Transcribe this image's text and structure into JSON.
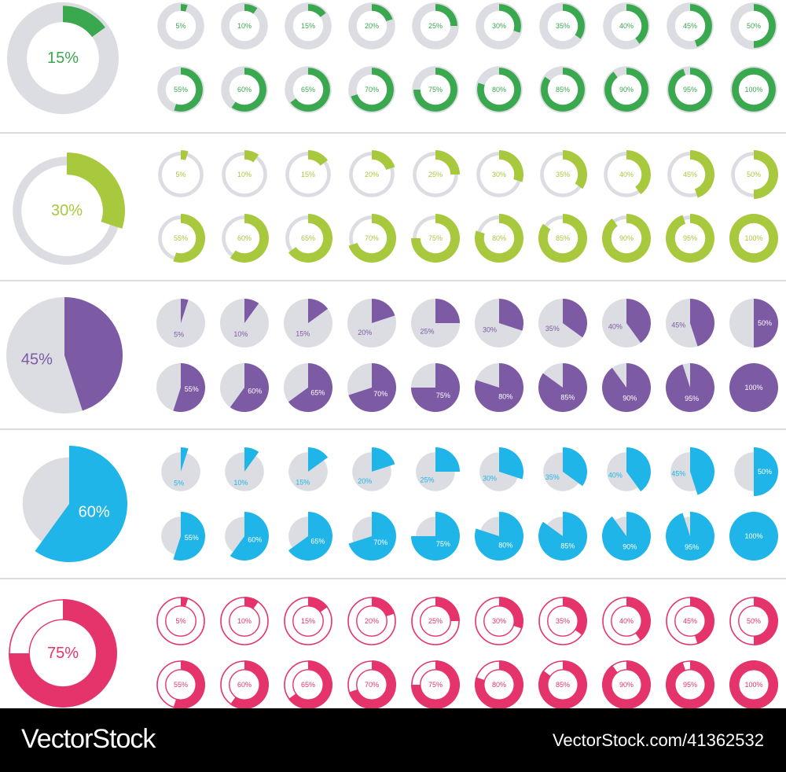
{
  "sets": [
    {
      "name": "green-donut",
      "style": "donut",
      "color": "#3aa84f",
      "track": "#dcdde2",
      "hero_percent": 15,
      "hero_label": "15%"
    },
    {
      "name": "lime-ring",
      "style": "ring",
      "color": "#a8c83e",
      "track": "#dcdde2",
      "hero_percent": 30,
      "hero_label": "30%"
    },
    {
      "name": "purple-pie",
      "style": "pie",
      "color": "#7c5aa4",
      "track": "#dcdde2",
      "hero_percent": 45,
      "hero_label": "45%"
    },
    {
      "name": "blue-pie",
      "style": "pie-exploded",
      "color": "#1fb5e8",
      "track": "#dcdde2",
      "hero_percent": 60,
      "hero_label": "60%"
    },
    {
      "name": "pink-outline",
      "style": "outline",
      "color": "#e5336c",
      "track": "#ffffff",
      "hero_percent": 75,
      "hero_label": "75%"
    }
  ],
  "steps": [
    {
      "percent": 5,
      "label": "5%"
    },
    {
      "percent": 10,
      "label": "10%"
    },
    {
      "percent": 15,
      "label": "15%"
    },
    {
      "percent": 20,
      "label": "20%"
    },
    {
      "percent": 25,
      "label": "25%"
    },
    {
      "percent": 30,
      "label": "30%"
    },
    {
      "percent": 35,
      "label": "35%"
    },
    {
      "percent": 40,
      "label": "40%"
    },
    {
      "percent": 45,
      "label": "45%"
    },
    {
      "percent": 50,
      "label": "50%"
    },
    {
      "percent": 55,
      "label": "55%"
    },
    {
      "percent": 60,
      "label": "60%"
    },
    {
      "percent": 65,
      "label": "65%"
    },
    {
      "percent": 70,
      "label": "70%"
    },
    {
      "percent": 75,
      "label": "75%"
    },
    {
      "percent": 80,
      "label": "80%"
    },
    {
      "percent": 85,
      "label": "85%"
    },
    {
      "percent": 90,
      "label": "90%"
    },
    {
      "percent": 95,
      "label": "95%"
    },
    {
      "percent": 100,
      "label": "100%"
    }
  ],
  "footer": {
    "brand": "VectorStock",
    "image_id": "VectorStock.com/41362532"
  }
}
